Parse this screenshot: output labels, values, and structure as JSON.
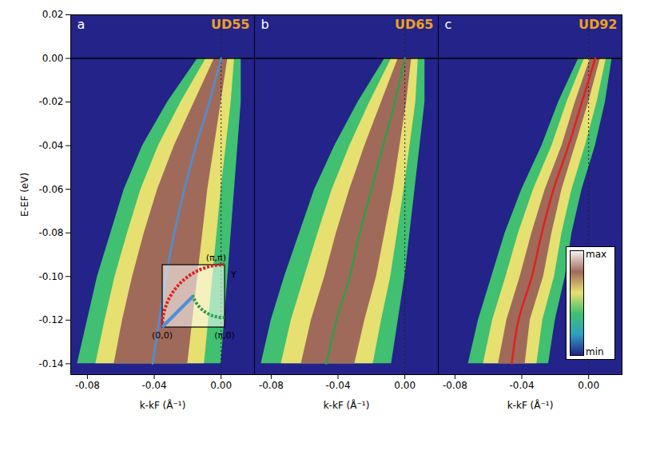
{
  "chart_data": {
    "type": "heatmap_panels",
    "xlabel": "k-kF (Å⁻¹)",
    "ylabel": "E-EF (eV)",
    "xlim": [
      -0.09,
      0.02
    ],
    "ylim": [
      -0.145,
      0.02
    ],
    "xticks": [
      {
        "value": -0.08,
        "label": "-0.08"
      },
      {
        "value": -0.04,
        "label": "-0.04"
      },
      {
        "value": 0,
        "label": "0.00"
      }
    ],
    "yticks": [
      {
        "value": 0.02,
        "label": "0.02"
      },
      {
        "value": 0,
        "label": "0.00"
      },
      {
        "value": -0.02,
        "label": "-0.02"
      },
      {
        "value": -0.04,
        "label": "-0.04"
      },
      {
        "value": -0.06,
        "label": "-0.06"
      },
      {
        "value": -0.08,
        "label": "-0.08"
      },
      {
        "value": -0.1,
        "label": "-0.10"
      },
      {
        "value": -0.12,
        "label": "-0.12"
      },
      {
        "value": -0.14,
        "label": "-0.14"
      }
    ],
    "reference_lines": {
      "energy": 0,
      "k": 0
    },
    "panels": [
      {
        "letter": "a",
        "title": "UD55",
        "color": "#4a90d9",
        "energy": [
          0,
          -0.02,
          -0.04,
          -0.06,
          -0.08,
          -0.1,
          -0.12,
          -0.14
        ],
        "dispersion_k": [
          0.0,
          -0.007,
          -0.015,
          -0.022,
          -0.028,
          -0.033,
          -0.037,
          -0.041
        ],
        "core_left": [
          -0.004,
          -0.016,
          -0.028,
          -0.038,
          -0.046,
          -0.053,
          -0.059,
          -0.064
        ],
        "core_right": [
          0.004,
          0.0,
          -0.004,
          -0.008,
          -0.011,
          -0.014,
          -0.017,
          -0.02
        ],
        "halo_left": [
          -0.014,
          -0.032,
          -0.047,
          -0.058,
          -0.066,
          -0.074,
          -0.08,
          -0.086
        ],
        "halo_right": [
          0.012,
          0.012,
          0.01,
          0.008,
          0.006,
          0.004,
          0.002,
          0.0
        ]
      },
      {
        "letter": "b",
        "title": "UD65",
        "color": "#2e9e4a",
        "energy": [
          0,
          -0.02,
          -0.04,
          -0.06,
          -0.08,
          -0.1,
          -0.12,
          -0.14
        ],
        "dispersion_k": [
          0.0,
          -0.006,
          -0.013,
          -0.02,
          -0.027,
          -0.033,
          -0.041,
          -0.047
        ],
        "core_left": [
          -0.004,
          -0.014,
          -0.024,
          -0.033,
          -0.041,
          -0.048,
          -0.056,
          -0.062
        ],
        "core_right": [
          0.004,
          0.001,
          -0.003,
          -0.007,
          -0.012,
          -0.017,
          -0.024,
          -0.03
        ],
        "halo_left": [
          -0.012,
          -0.028,
          -0.042,
          -0.054,
          -0.063,
          -0.072,
          -0.08,
          -0.086
        ],
        "halo_right": [
          0.012,
          0.012,
          0.009,
          0.006,
          0.003,
          0.0,
          -0.004,
          -0.008
        ]
      },
      {
        "letter": "c",
        "title": "UD92",
        "color": "#e02020",
        "energy": [
          0,
          -0.02,
          -0.04,
          -0.06,
          -0.08,
          -0.1,
          -0.12,
          -0.14
        ],
        "dispersion_k": [
          0.004,
          -0.004,
          -0.012,
          -0.021,
          -0.028,
          -0.034,
          -0.042,
          -0.046
        ],
        "core_left": [
          0.001,
          -0.008,
          -0.016,
          -0.026,
          -0.034,
          -0.041,
          -0.049,
          -0.054
        ],
        "core_right": [
          0.007,
          0.0,
          -0.008,
          -0.016,
          -0.022,
          -0.027,
          -0.035,
          -0.038
        ],
        "halo_left": [
          -0.006,
          -0.018,
          -0.028,
          -0.04,
          -0.05,
          -0.058,
          -0.066,
          -0.072
        ],
        "halo_right": [
          0.014,
          0.01,
          0.004,
          -0.004,
          -0.01,
          -0.014,
          -0.02,
          -0.024
        ]
      }
    ],
    "inset": {
      "labels": {
        "top_right": "(π,π)",
        "right": "Y",
        "bottom_left": "(0,0)",
        "bottom_right": "(π,0)"
      }
    },
    "colorbar": {
      "labels": [
        "max",
        "min"
      ],
      "colors": [
        "#f4f0f0",
        "#a06a5a",
        "#e6e070",
        "#40c070",
        "#30a0c0",
        "#23238a"
      ]
    }
  }
}
